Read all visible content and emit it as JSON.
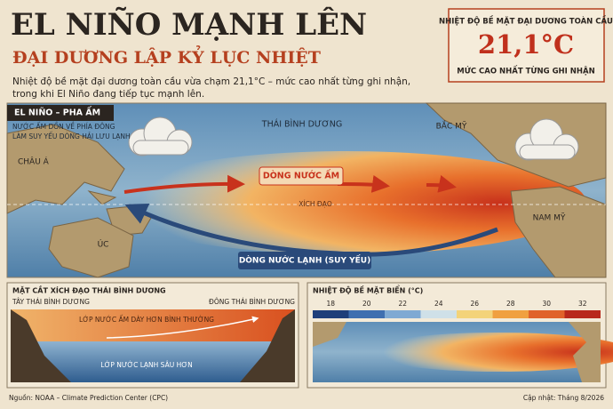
{
  "header": {
    "title": "EL NIÑO MẠNH LÊN",
    "subtitle": "ĐẠI DƯƠNG LẬP KỶ LỤC NHIỆT",
    "intro": [
      "Nhiệt độ bề mặt đại dương toàn cầu vừa chạm 21,1°C – mức cao nhất từng ghi nhận,",
      "trong khi El Niño đang tiếp tục mạnh lên."
    ]
  },
  "stat": {
    "label": "NHIỆT ĐỘ BỀ MẶT ĐẠI DƯƠNG TOÀN CẦU",
    "value": "21,1°C",
    "note": "MỨC CAO NHẤT TỪNG GHI NHẬN"
  },
  "map": {
    "badge": "EL NIÑO – PHA ẤM",
    "caption": [
      "NƯỚC ẤM DỒN VỀ PHÍA ĐÔNG",
      "LÀM SUY YẾU DÒNG HẢI LƯU LẠNH"
    ],
    "labels": {
      "asia": "CHÂU Á",
      "pacific": "THÁI BÌNH DƯƠNG",
      "north_america": "BẮC MỸ",
      "equator": "XÍCH ĐẠO",
      "australia": "ÚC",
      "south_america": "NAM MỸ"
    },
    "warm_current": "DÒNG NƯỚC ẤM",
    "cold_current": "DÒNG NƯỚC LẠNH (SUY YẾU)"
  },
  "cross_section": {
    "title": "MẶT CẮT XÍCH ĐẠO THÁI BÌNH DƯƠNG",
    "west": "TÂY THÁI BÌNH DƯƠNG",
    "east": "ĐÔNG THÁI BÌNH DƯƠNG",
    "warm_layer": "LỚP NƯỚC ẤM DÀY HƠN BÌNH THƯỜNG",
    "cold_layer": "LỚP NƯỚC LẠNH SÂU HƠN"
  },
  "sst": {
    "title": "NHIỆT ĐỘ BỀ MẶT BIỂN (°C)",
    "ticks": [
      18,
      20,
      22,
      24,
      26,
      28,
      30,
      32
    ],
    "colors": [
      "#1f3f7a",
      "#3f6fb0",
      "#7fa9d3",
      "#cfe0e8",
      "#f3d37a",
      "#f0a040",
      "#e0622a",
      "#b8281c"
    ]
  },
  "footer": {
    "source": "Nguồn: NOAA – Climate Prediction Center (CPC)",
    "updated": "Cập nhật: Tháng 8/2026"
  }
}
